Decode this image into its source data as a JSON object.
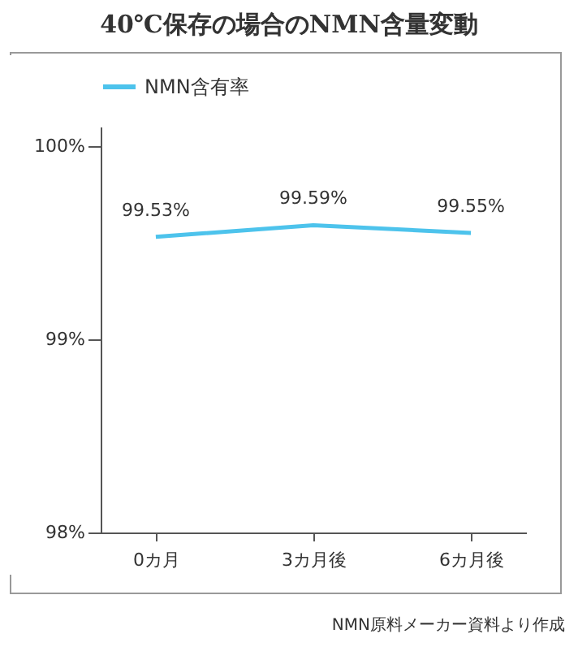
{
  "chart_data": {
    "type": "line",
    "title": "40℃保存の場合のNMN含量変動",
    "categories": [
      "0カ月",
      "3カ月後",
      "6カ月後"
    ],
    "series": [
      {
        "name": "NMN含有率",
        "color": "#4dc3ec",
        "values": [
          99.53,
          99.59,
          99.55
        ],
        "value_labels": [
          "99.53%",
          "99.59%",
          "99.55%"
        ]
      }
    ],
    "ylim": [
      98,
      100.1
    ],
    "yticks": [
      {
        "value": 98,
        "label": "98%"
      },
      {
        "value": 99,
        "label": "99%"
      },
      {
        "value": 100,
        "label": "100%"
      }
    ],
    "grid": false,
    "legend": "top",
    "marker": "none",
    "line_style": "solid",
    "annotations": [
      "NMN原料メーカー資料より作成"
    ]
  }
}
